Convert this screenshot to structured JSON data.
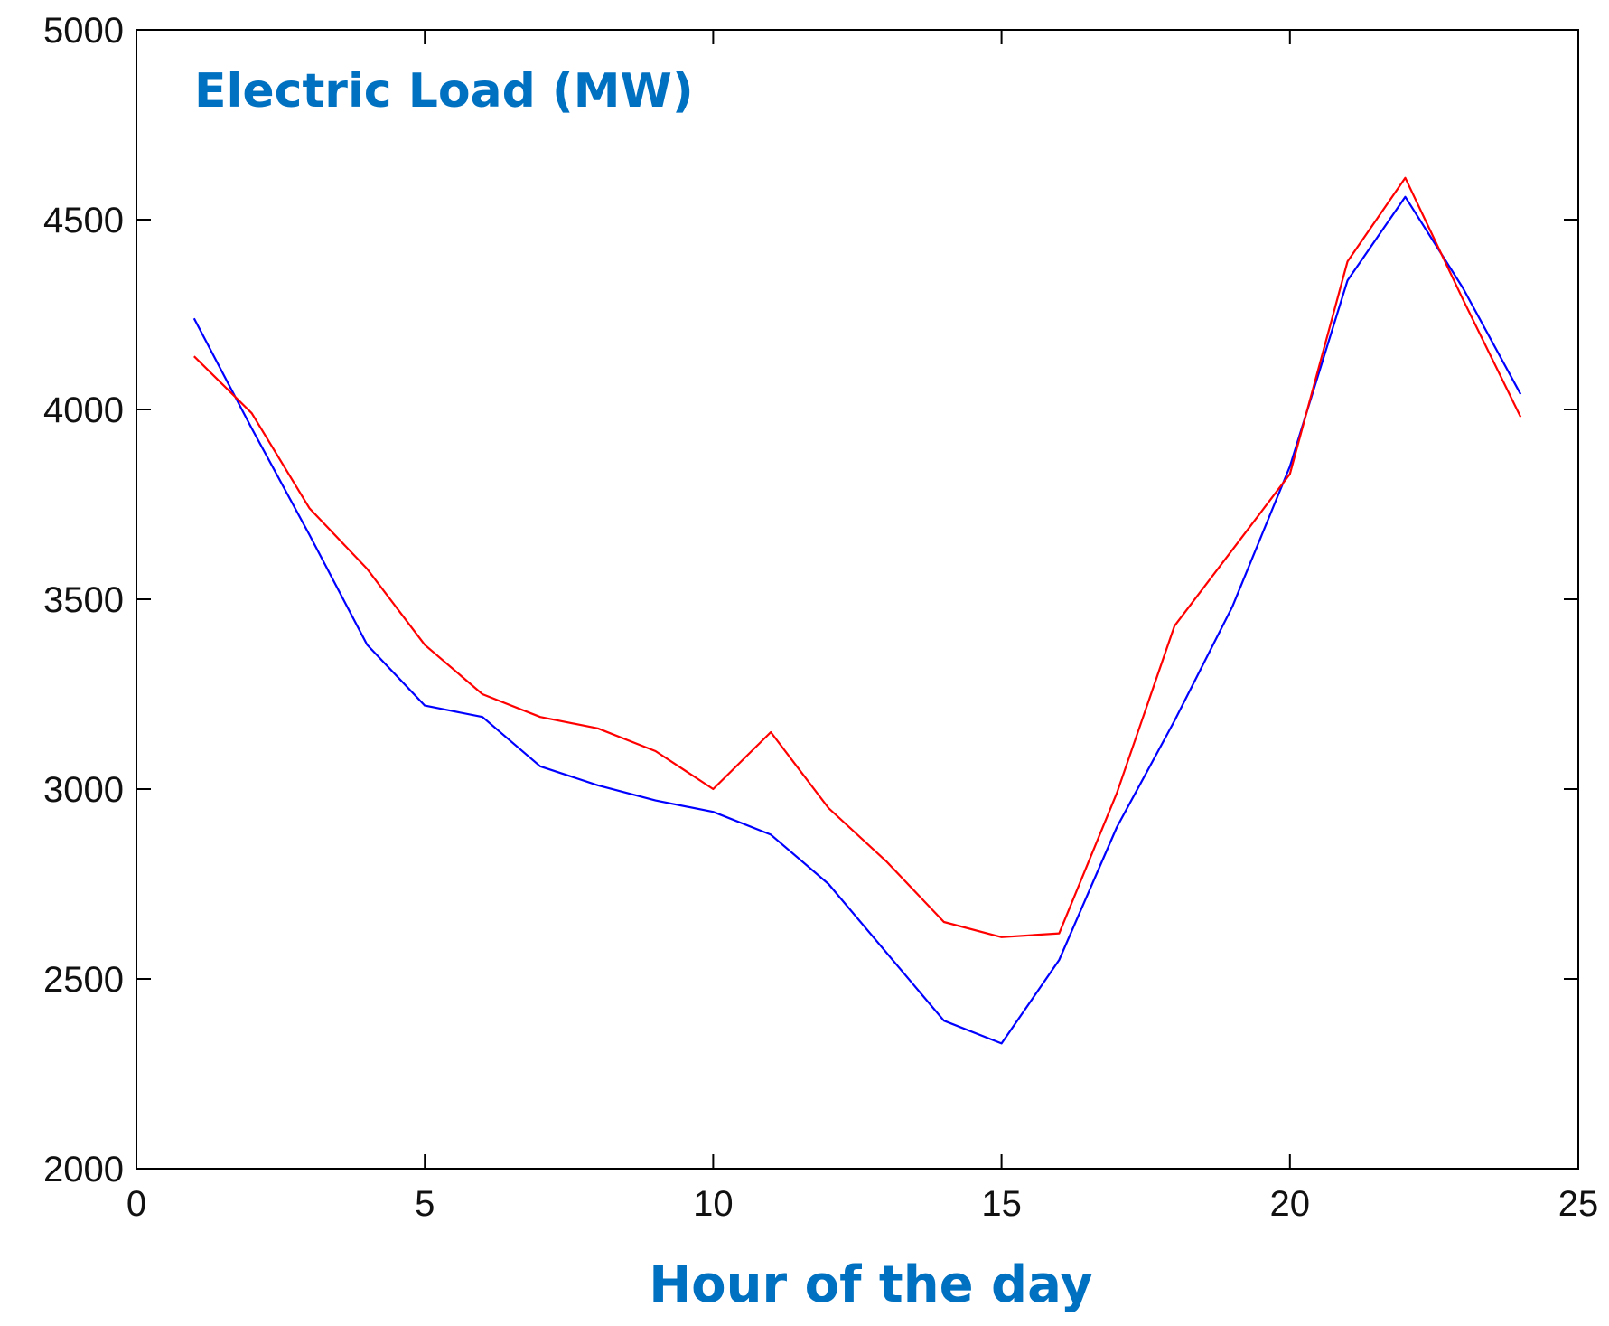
{
  "chart_data": {
    "type": "line",
    "title": "Electric Load (MW)",
    "xlabel": "Hour of the day",
    "ylabel": "",
    "xlim": [
      0,
      25
    ],
    "ylim": [
      2000,
      5000
    ],
    "xticks": [
      0,
      5,
      10,
      15,
      20,
      25
    ],
    "yticks": [
      2000,
      2500,
      3000,
      3500,
      4000,
      4500,
      5000
    ],
    "grid": false,
    "x": [
      1,
      2,
      3,
      4,
      5,
      6,
      7,
      8,
      9,
      10,
      11,
      12,
      13,
      14,
      15,
      16,
      17,
      18,
      19,
      20,
      21,
      22,
      23,
      24
    ],
    "series": [
      {
        "color": "#0000ff",
        "values": [
          4240,
          3950,
          3670,
          3380,
          3220,
          3190,
          3060,
          3010,
          2970,
          2940,
          2880,
          2750,
          2570,
          2390,
          2330,
          2550,
          2900,
          3180,
          3480,
          3850,
          4340,
          4560,
          4320,
          4040
        ]
      },
      {
        "color": "#ff0000",
        "values": [
          4140,
          3990,
          3740,
          3580,
          3380,
          3250,
          3190,
          3160,
          3100,
          3000,
          3150,
          2950,
          2810,
          2650,
          2610,
          2620,
          2990,
          3430,
          3630,
          3830,
          4390,
          4610,
          4290,
          3980
        ]
      }
    ],
    "title_color": "#0070c0",
    "xlabel_color": "#0070c0"
  }
}
